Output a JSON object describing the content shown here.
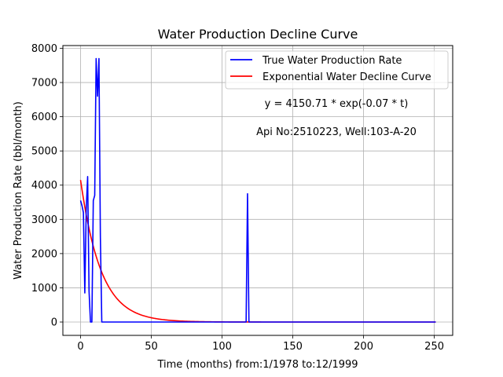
{
  "chart_data": {
    "type": "line",
    "title": "Water Production Decline Curve",
    "xlabel": "Time (months) from:1/1978 to:12/1999",
    "ylabel": "Water Production Rate (bbl/month)",
    "xlim": [
      -12.5,
      263
    ],
    "ylim": [
      -390,
      8080
    ],
    "x_ticks": [
      0,
      50,
      100,
      150,
      200,
      250
    ],
    "y_ticks": [
      0,
      1000,
      2000,
      3000,
      4000,
      5000,
      6000,
      7000,
      8000
    ],
    "x_tick_labels": [
      "0",
      "50",
      "100",
      "150",
      "200",
      "250"
    ],
    "y_tick_labels": [
      "0",
      "1000",
      "2000",
      "3000",
      "4000",
      "5000",
      "6000",
      "7000",
      "8000"
    ],
    "grid": true,
    "legend_position": "upper right",
    "annotations": [
      "y = 4150.71 * exp(-0.07 * t)",
      "Api No:2510223, Well:103-A-20"
    ],
    "series": [
      {
        "name": "True Water Production Rate",
        "color": "#0000ff",
        "kind": "observed",
        "x": [
          0,
          1,
          2,
          3,
          4,
          5,
          6,
          7,
          8,
          9,
          10,
          11,
          12,
          13,
          14,
          15,
          117,
          118,
          119,
          251
        ],
        "y": [
          3550,
          3400,
          3200,
          850,
          3300,
          4250,
          900,
          0,
          0,
          3550,
          3700,
          7700,
          6600,
          7700,
          2500,
          0,
          0,
          3750,
          0,
          0
        ]
      },
      {
        "name": "Exponential Water Decline Curve",
        "color": "#ff0000",
        "kind": "fit",
        "a": 4150.71,
        "b": -0.07,
        "x_range": [
          0,
          251
        ]
      }
    ]
  }
}
